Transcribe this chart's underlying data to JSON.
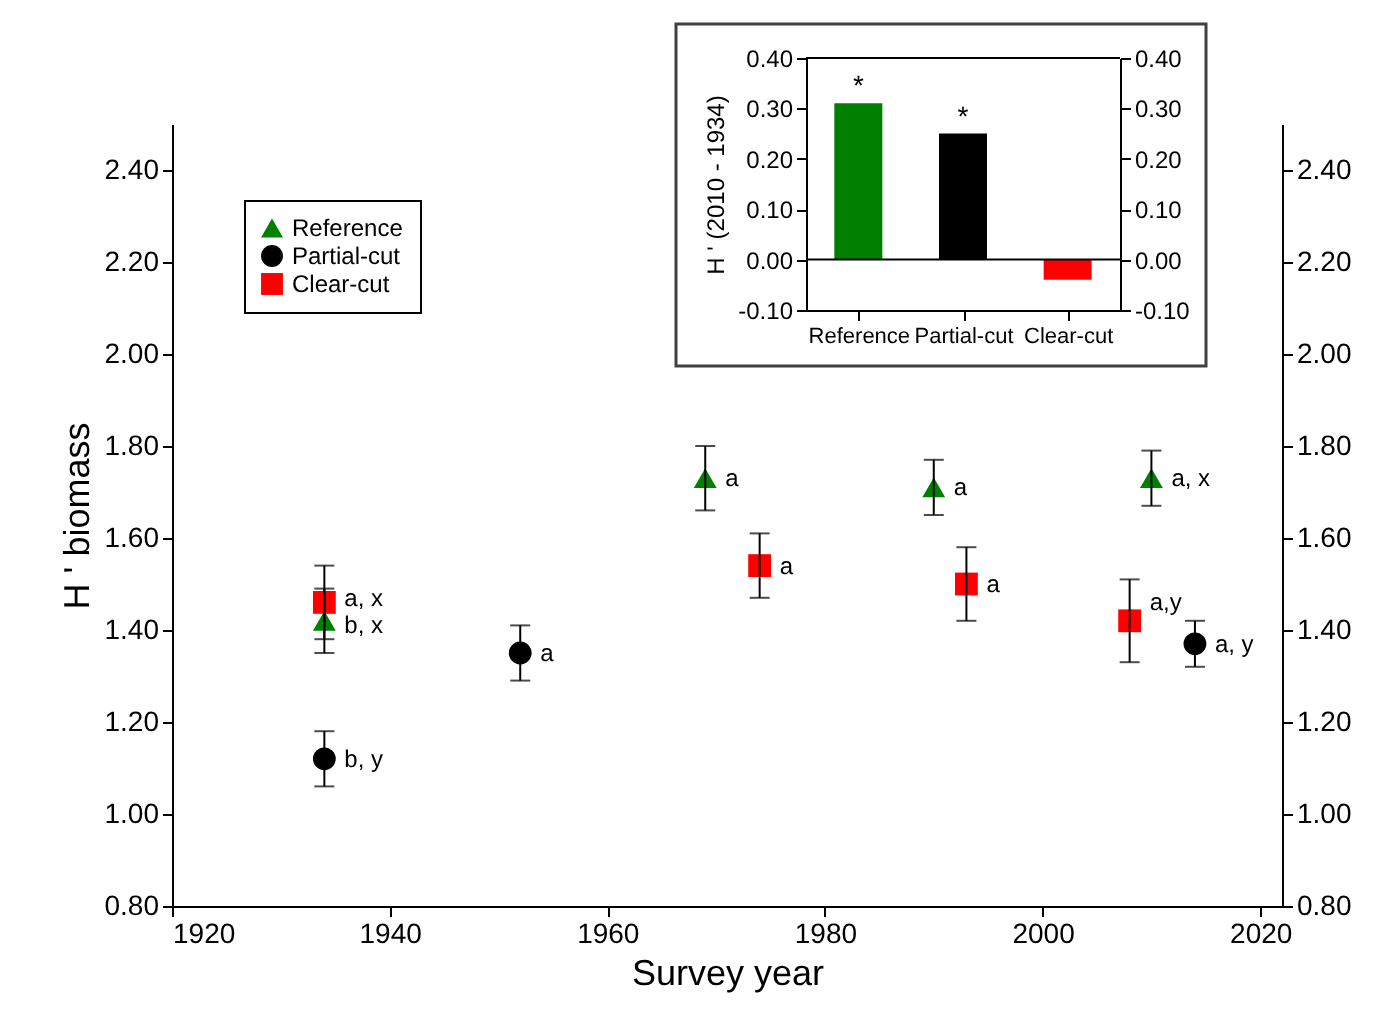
{
  "chart_data": [
    {
      "type": "scatter",
      "xlabel": "Survey year",
      "ylabel": "H ' biomass",
      "xlim": [
        1920,
        2022
      ],
      "xticks": [
        1920,
        1940,
        1960,
        1980,
        2000,
        2020
      ],
      "ylim": [
        0.8,
        2.5
      ],
      "yticks": [
        {
          "value": 0.8,
          "label": "0.80"
        },
        {
          "value": 1.0,
          "label": "1.00"
        },
        {
          "value": 1.2,
          "label": "1.20"
        },
        {
          "value": 1.4,
          "label": "1.40"
        },
        {
          "value": 1.6,
          "label": "1.60"
        },
        {
          "value": 1.8,
          "label": "1.80"
        },
        {
          "value": 2.0,
          "label": "2.00"
        },
        {
          "value": 2.2,
          "label": "2.20"
        },
        {
          "value": 2.4,
          "label": "2.40"
        }
      ],
      "y2lim": [
        0.8,
        2.5
      ],
      "y2ticks": [
        {
          "value": 0.8,
          "label": "0.80"
        },
        {
          "value": 1.0,
          "label": "1.00"
        },
        {
          "value": 1.2,
          "label": "1.20"
        },
        {
          "value": 1.4,
          "label": "1.40"
        },
        {
          "value": 1.6,
          "label": "1.60"
        },
        {
          "value": 1.8,
          "label": "1.80"
        },
        {
          "value": 2.0,
          "label": "2.00"
        },
        {
          "value": 2.2,
          "label": "2.20"
        },
        {
          "value": 2.4,
          "label": "2.40"
        }
      ],
      "grid": false,
      "legend": "top left",
      "series": [
        {
          "name": "Reference",
          "color": "#008000",
          "marker": "triangle",
          "x": [
            1934,
            1969,
            1990,
            2010
          ],
          "values": [
            1.42,
            1.73,
            1.71,
            1.73
          ],
          "errors": [
            0.07,
            0.07,
            0.06,
            0.06
          ]
        },
        {
          "name": "Partial-cut",
          "color": "#000000",
          "marker": "circle",
          "x": [
            1934,
            1952,
            2014
          ],
          "values": [
            1.12,
            1.35,
            1.37
          ],
          "errors": [
            0.06,
            0.06,
            0.05
          ]
        },
        {
          "name": "Clear-cut",
          "color": "#ff0000",
          "marker": "square",
          "x": [
            1934,
            1974,
            1993,
            2008
          ],
          "values": [
            1.46,
            1.54,
            1.5,
            1.42
          ],
          "errors": [
            0.08,
            0.07,
            0.08,
            0.09
          ]
        }
      ],
      "annotations": [
        {
          "text": "a, x",
          "x": 1934,
          "y": 1.47
        },
        {
          "text": "b, x",
          "x": 1934,
          "y": 1.41
        },
        {
          "text": "b, y",
          "x": 1934,
          "y": 1.12
        },
        {
          "text": "a",
          "x": 1952,
          "y": 1.35
        },
        {
          "text": "a",
          "x": 1969,
          "y": 1.73
        },
        {
          "text": "a",
          "x": 1974,
          "y": 1.54
        },
        {
          "text": "a",
          "x": 1990,
          "y": 1.71
        },
        {
          "text": "a",
          "x": 1993,
          "y": 1.5
        },
        {
          "text": "a, x",
          "x": 2010,
          "y": 1.73
        },
        {
          "text": "a,y",
          "x": 2008,
          "y": 1.46
        },
        {
          "text": "a, y",
          "x": 2014,
          "y": 1.37
        }
      ]
    },
    {
      "type": "bar",
      "ylabel": "H ' (2010 - 1934)",
      "categories": [
        "Reference",
        "Partial-cut",
        "Clear-cut"
      ],
      "values": [
        0.31,
        0.25,
        -0.04
      ],
      "colors": [
        "#008000",
        "#000000",
        "#ff0000"
      ],
      "ylim": [
        -0.1,
        0.4
      ],
      "yticks": [
        {
          "value": -0.1,
          "label": "-0.10"
        },
        {
          "value": 0.0,
          "label": "0.00"
        },
        {
          "value": 0.1,
          "label": "0.10"
        },
        {
          "value": 0.2,
          "label": "0.20"
        },
        {
          "value": 0.3,
          "label": "0.30"
        },
        {
          "value": 0.4,
          "label": "0.40"
        }
      ],
      "y2lim": [
        -0.1,
        0.4
      ],
      "y2ticks": [
        {
          "value": -0.1,
          "label": "-0.10"
        },
        {
          "value": 0.0,
          "label": "0.00"
        },
        {
          "value": 0.1,
          "label": "0.10"
        },
        {
          "value": 0.2,
          "label": "0.20"
        },
        {
          "value": 0.3,
          "label": "0.30"
        },
        {
          "value": 0.4,
          "label": "0.40"
        }
      ],
      "grid": false,
      "ref_lines": [
        {
          "axis": "y",
          "value": 0.0
        }
      ],
      "annotations": [
        {
          "text": "*",
          "x": "Reference",
          "y": 0.31
        },
        {
          "text": "*",
          "x": "Partial-cut",
          "y": 0.25
        }
      ]
    }
  ]
}
